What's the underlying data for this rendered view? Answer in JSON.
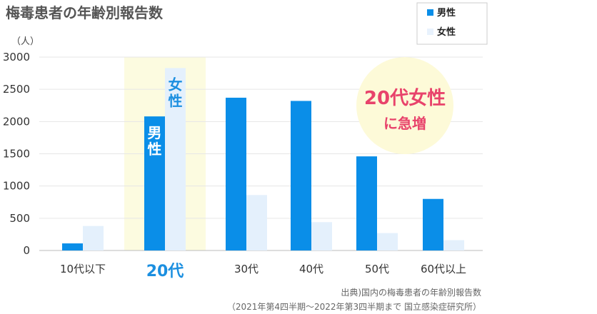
{
  "title": "梅毒患者の年齢別報告数",
  "chart_data": {
    "type": "bar",
    "categories": [
      "10代以下",
      "20代",
      "30代",
      "40代",
      "50代",
      "60代以上"
    ],
    "series": [
      {
        "name": "男性",
        "values": [
          110,
          2080,
          2370,
          2320,
          1460,
          800
        ],
        "color": "#0a8ee8"
      },
      {
        "name": "女性",
        "values": [
          380,
          2830,
          860,
          440,
          270,
          160
        ],
        "color": "#e4f0fc"
      }
    ],
    "ylabel": "（人）",
    "ylim": [
      0,
      3000
    ],
    "yticks": [
      0,
      500,
      1000,
      1500,
      2000,
      2500,
      3000
    ],
    "grid": true,
    "legend": "top-right",
    "highlight_category": "20代",
    "highlight_color": "#fcfbe0",
    "bar_labels": {
      "male": "男性",
      "female": "女性"
    },
    "annotation": {
      "line1": "20代女性",
      "line2": "に急増",
      "color": "#fdfad8"
    }
  },
  "source": {
    "line1": "出典)国内の梅毒患者の年齢別報告数",
    "line2": "（2021年第4四半期～2022年第3四半期まで 国立感染症研究所）"
  }
}
